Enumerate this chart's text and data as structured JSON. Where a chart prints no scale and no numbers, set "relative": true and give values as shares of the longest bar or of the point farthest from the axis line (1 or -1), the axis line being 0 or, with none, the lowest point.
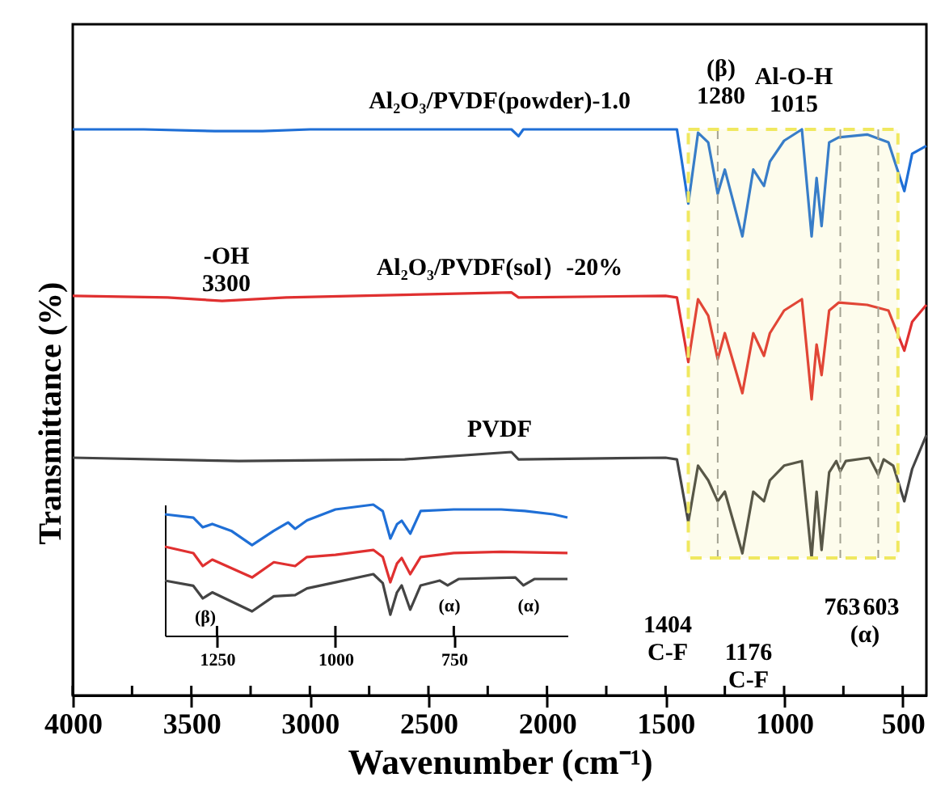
{
  "chart_data": [
    {
      "type": "line",
      "relative": true,
      "xlabel": "Wavenumber (cm⁻¹)",
      "ylabel": "Transmittance (%)",
      "xlim": [
        4000,
        400
      ],
      "xticks": [
        4000,
        {
          "value": 3750,
          "label": null
        },
        3500,
        {
          "value": 3250,
          "label": null
        },
        3000,
        {
          "value": 2750,
          "label": null
        },
        2500,
        {
          "value": 2250,
          "label": null
        },
        2000,
        {
          "value": 1750,
          "label": null
        },
        1500,
        {
          "value": 1250,
          "label": null
        },
        1000,
        {
          "value": 750,
          "label": null
        },
        500
      ],
      "tick_labels": "x",
      "grid": false,
      "marker": "none",
      "line_style": "solid",
      "series": [
        {
          "name": "Al₂O₃/PVDF(powder)-1.0",
          "color": "#1f6fd6",
          "x": [
            4000,
            3700,
            3400,
            3200,
            3000,
            2400,
            2150,
            2120,
            2100,
            1500,
            1452,
            1404,
            1363,
            1320,
            1280,
            1250,
            1176,
            1130,
            1085,
            1060,
            1000,
            925,
            884,
            863,
            842,
            810,
            770,
            650,
            560,
            493,
            460,
            400
          ],
          "values": [
            1.0,
            1.0,
            0.997,
            0.997,
            1.0,
            1.0,
            1.0,
            0.988,
            1.0,
            1.0,
            1.0,
            0.869,
            0.994,
            0.977,
            0.886,
            0.929,
            0.811,
            0.929,
            0.9,
            0.943,
            0.98,
            1.0,
            0.811,
            0.914,
            0.829,
            0.977,
            0.986,
            0.991,
            0.977,
            0.891,
            0.957,
            0.971
          ]
        },
        {
          "name": "Al₂O₃/PVDF(sol）-20%",
          "color": "#e03030",
          "x": [
            4000,
            3600,
            3370,
            3100,
            2800,
            2150,
            2120,
            1500,
            1452,
            1404,
            1363,
            1320,
            1280,
            1250,
            1176,
            1130,
            1085,
            1060,
            1000,
            925,
            884,
            863,
            842,
            810,
            770,
            650,
            560,
            493,
            460,
            400
          ],
          "values": [
            0.706,
            0.703,
            0.697,
            0.703,
            0.706,
            0.712,
            0.703,
            0.706,
            0.703,
            0.589,
            0.7,
            0.671,
            0.594,
            0.64,
            0.534,
            0.64,
            0.6,
            0.64,
            0.68,
            0.7,
            0.523,
            0.62,
            0.566,
            0.68,
            0.694,
            0.69,
            0.68,
            0.609,
            0.66,
            0.69
          ]
        },
        {
          "name": "PVDF",
          "color": "#444444",
          "x": [
            4000,
            3300,
            2600,
            2150,
            2120,
            1500,
            1452,
            1404,
            1363,
            1320,
            1280,
            1250,
            1176,
            1130,
            1085,
            1060,
            1000,
            925,
            884,
            863,
            842,
            810,
            780,
            763,
            740,
            640,
            603,
            580,
            540,
            493,
            460,
            400
          ],
          "values": [
            0.42,
            0.414,
            0.417,
            0.43,
            0.417,
            0.42,
            0.417,
            0.306,
            0.406,
            0.38,
            0.343,
            0.36,
            0.251,
            0.36,
            0.343,
            0.38,
            0.406,
            0.414,
            0.243,
            0.36,
            0.257,
            0.394,
            0.414,
            0.396,
            0.414,
            0.42,
            0.39,
            0.417,
            0.406,
            0.343,
            0.4,
            0.46
          ]
        }
      ],
      "ref_lines": [
        {
          "axis": "x",
          "value": 1280,
          "label": null,
          "color": "#999999",
          "line_style": "dashed"
        },
        {
          "axis": "x",
          "value": 763,
          "label": null,
          "color": "#999999",
          "line_style": "dashed"
        },
        {
          "axis": "x",
          "value": 603,
          "label": null,
          "color": "#999999",
          "line_style": "dashed"
        }
      ],
      "bands": [
        {
          "axis": "x",
          "from": 1404,
          "to": 520,
          "label": null,
          "color": "#f0e860"
        }
      ],
      "annotations": [
        "-OH\n3300",
        "(β)\n1280",
        "Al-O-H\n1015",
        "1404\nC-F",
        "1176\nC-F",
        "763",
        "603",
        "(α)"
      ]
    },
    {
      "type": "line",
      "relative": true,
      "xlim": [
        1360,
        510
      ],
      "xticks": [
        1250,
        1000,
        750
      ],
      "tick_labels": "x",
      "grid": false,
      "marker": "none",
      "line_style": "solid",
      "series": [
        {
          "color": "#1f6fd6",
          "x": [
            1360,
            1300,
            1280,
            1260,
            1220,
            1176,
            1130,
            1100,
            1085,
            1060,
            1000,
            920,
            900,
            884,
            870,
            860,
            842,
            820,
            750,
            650,
            600,
            540,
            510
          ],
          "values": [
            0.926,
            0.9,
            0.827,
            0.852,
            0.8,
            0.691,
            0.8,
            0.864,
            0.815,
            0.88,
            0.963,
            1.0,
            0.95,
            0.741,
            0.85,
            0.877,
            0.778,
            0.951,
            0.963,
            0.963,
            0.951,
            0.926,
            0.901
          ]
        },
        {
          "color": "#e03030",
          "x": [
            1360,
            1300,
            1280,
            1260,
            1176,
            1130,
            1085,
            1060,
            1000,
            920,
            900,
            884,
            870,
            860,
            842,
            820,
            750,
            650,
            510
          ],
          "values": [
            0.679,
            0.63,
            0.531,
            0.58,
            0.444,
            0.56,
            0.531,
            0.6,
            0.617,
            0.654,
            0.6,
            0.407,
            0.55,
            0.593,
            0.469,
            0.6,
            0.63,
            0.64,
            0.63
          ]
        },
        {
          "color": "#444444",
          "x": [
            1360,
            1300,
            1280,
            1260,
            1176,
            1130,
            1085,
            1060,
            1000,
            920,
            900,
            884,
            870,
            860,
            842,
            820,
            780,
            763,
            740,
            620,
            603,
            580,
            510
          ],
          "values": [
            0.42,
            0.38,
            0.284,
            0.33,
            0.185,
            0.3,
            0.309,
            0.36,
            0.407,
            0.469,
            0.4,
            0.16,
            0.33,
            0.383,
            0.198,
            0.383,
            0.42,
            0.383,
            0.432,
            0.444,
            0.383,
            0.432,
            0.432
          ]
        }
      ],
      "annotations": [
        "(β)",
        "(α)",
        "(α)"
      ]
    }
  ]
}
